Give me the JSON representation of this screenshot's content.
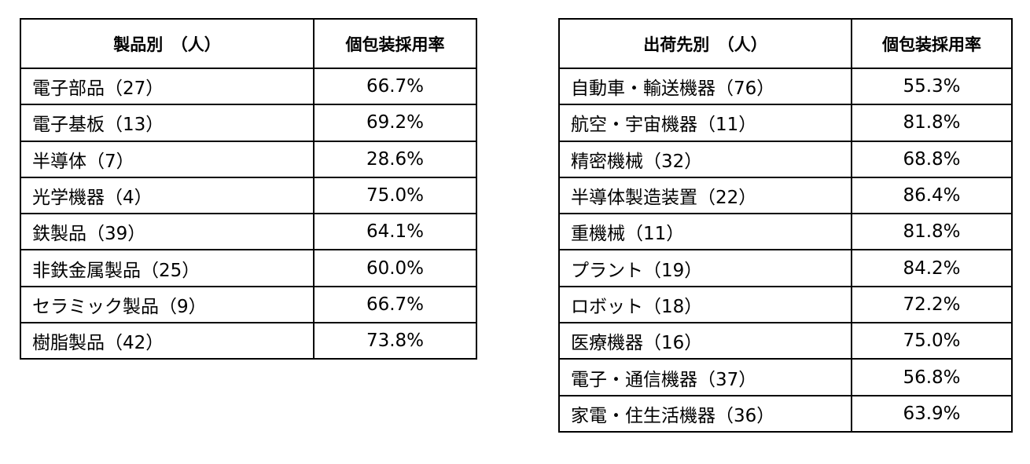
{
  "tables": [
    {
      "header": [
        "製品別　（人）",
        "個包装採用率"
      ],
      "rows": [
        [
          "電子部品（27）",
          "66.7%"
        ],
        [
          "電子基板（13）",
          "69.2%"
        ],
        [
          "半導体（7）",
          "28.6%"
        ],
        [
          "光学機器（4）",
          "75.0%"
        ],
        [
          "鉄製品（39）",
          "64.1%"
        ],
        [
          "非鉄金属製品（25）",
          "60.0%"
        ],
        [
          "セラミック製品（9）",
          "66.7%"
        ],
        [
          "樹脂製品（42）",
          "73.8%"
        ]
      ]
    },
    {
      "header": [
        "出荷先別　（人）",
        "個包装採用率"
      ],
      "rows": [
        [
          "自動車・輸送機器（76）",
          "55.3%"
        ],
        [
          "航空・宇宙機器（11）",
          "81.8%"
        ],
        [
          "精密機械（32）",
          "68.8%"
        ],
        [
          "半導体製造装置（22）",
          "86.4%"
        ],
        [
          "重機械（11）",
          "81.8%"
        ],
        [
          "プラント（19）",
          "84.2%"
        ],
        [
          "ロボット（18）",
          "72.2%"
        ],
        [
          "医療機器（16）",
          "75.0%"
        ],
        [
          "電子・通信機器（37）",
          "56.8%"
        ],
        [
          "家電・住生活機器（36）",
          "63.9%"
        ]
      ]
    }
  ]
}
